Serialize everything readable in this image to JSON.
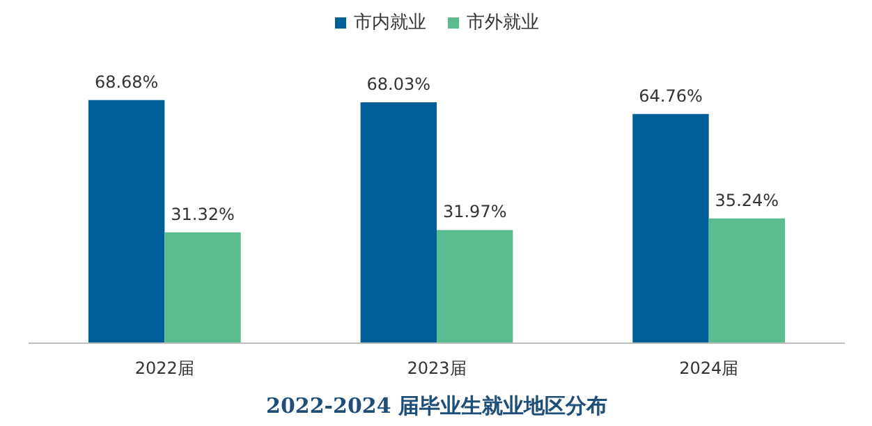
{
  "chart_data": {
    "type": "bar",
    "title": "2022-2024 届毕业生就业地区分布",
    "categories": [
      "2022届",
      "2023届",
      "2024届"
    ],
    "series": [
      {
        "name": "市内就业",
        "color": "#005f99",
        "values": [
          68.68,
          68.03,
          64.76
        ],
        "value_labels": [
          "68.68%",
          "68.03%",
          "64.76%"
        ]
      },
      {
        "name": "市外就业",
        "color": "#5bbd8f",
        "values": [
          31.32,
          31.97,
          35.24
        ],
        "value_labels": [
          "31.32%",
          "31.97%",
          "35.24%"
        ]
      }
    ],
    "legend": "top"
  }
}
